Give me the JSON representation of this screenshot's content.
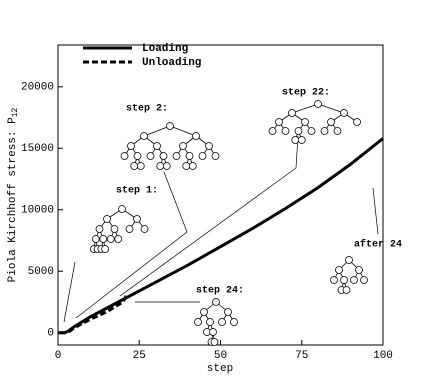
{
  "chart_data": {
    "type": "line",
    "xlabel": "step",
    "ylabel": "Piola Kirchhoff stress: P",
    "ylabel_subscript": "12",
    "xlim": [
      0,
      100
    ],
    "ylim": [
      -1000,
      23400
    ],
    "xticks": [
      0,
      25,
      50,
      75,
      100
    ],
    "yticks": [
      0,
      5000,
      10000,
      15000,
      20000
    ],
    "annotations": [
      "step 1:",
      "step 2:",
      "step 22:",
      "step 24:",
      "after 24"
    ],
    "series": [
      {
        "name": "Loading",
        "color": "#000000",
        "x": [
          0,
          2,
          3,
          5,
          10,
          15,
          20,
          25,
          30,
          40,
          50,
          60,
          70,
          80,
          90,
          100
        ],
        "values": [
          0,
          0,
          100,
          500,
          1300,
          2000,
          2700,
          3400,
          4100,
          5500,
          7000,
          8500,
          10100,
          11800,
          13700,
          15800
        ]
      },
      {
        "name": "Unloading",
        "color": "#000000",
        "x": [
          21,
          20,
          15,
          10,
          5,
          3,
          0
        ],
        "values": [
          3000,
          2500,
          1700,
          1100,
          400,
          0,
          0
        ]
      }
    ]
  }
}
